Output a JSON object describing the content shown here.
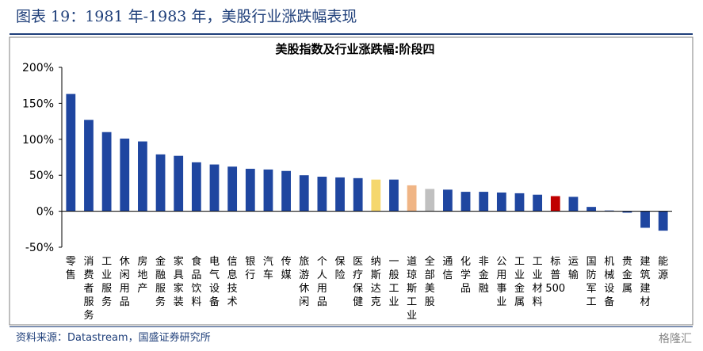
{
  "header": {
    "figure_title": "图表 19：1981 年-1983 年，美股行业涨跌幅表现"
  },
  "footer": {
    "source": "资料来源：Datastream，国盛证券研究所",
    "watermark": "格隆汇"
  },
  "colors": {
    "default_bar": "#1f46a0",
    "highlight_yellow": "#f5d76e",
    "highlight_orange": "#f0b585",
    "highlight_gray": "#c0c0c0",
    "highlight_red": "#c00000",
    "rule": "#1f3f7a"
  },
  "chart_data": {
    "type": "bar",
    "title": "美股指数及行业涨跌幅:阶段四",
    "xlabel": "",
    "ylabel": "",
    "ylim": [
      -50,
      200
    ],
    "yticks": [
      -50,
      0,
      50,
      100,
      150,
      200
    ],
    "ytick_labels": [
      "-50%",
      "0%",
      "50%",
      "100%",
      "150%",
      "200%"
    ],
    "categories": [
      "零售",
      "消费者服务",
      "工业服务",
      "休闲用品",
      "房地产",
      "金融服务",
      "家具家装",
      "食品饮料",
      "电气设备",
      "信息技术",
      "银行",
      "汽车",
      "传媒",
      "旅游休闲",
      "个人用品",
      "保险",
      "医疗保健",
      "纳斯达克",
      "一般工业",
      "道琼斯工业",
      "全部美股",
      "通信",
      "化学品",
      "非金融",
      "公用事业",
      "工业金属",
      "工业材料",
      "标普500",
      "运输",
      "国防军工",
      "机械设备",
      "贵金属",
      "建筑建材",
      "能源"
    ],
    "values": [
      163,
      127,
      110,
      101,
      97,
      79,
      77,
      68,
      65,
      62,
      59,
      58,
      56,
      50,
      48,
      47,
      46,
      44,
      44,
      36,
      31,
      30,
      27,
      27,
      26,
      25,
      23,
      21,
      20,
      6,
      1,
      -2,
      -23,
      -27
    ],
    "bar_colors": [
      "#1f46a0",
      "#1f46a0",
      "#1f46a0",
      "#1f46a0",
      "#1f46a0",
      "#1f46a0",
      "#1f46a0",
      "#1f46a0",
      "#1f46a0",
      "#1f46a0",
      "#1f46a0",
      "#1f46a0",
      "#1f46a0",
      "#1f46a0",
      "#1f46a0",
      "#1f46a0",
      "#1f46a0",
      "#f5d76e",
      "#1f46a0",
      "#f0b585",
      "#c0c0c0",
      "#1f46a0",
      "#1f46a0",
      "#1f46a0",
      "#1f46a0",
      "#1f46a0",
      "#1f46a0",
      "#c00000",
      "#1f46a0",
      "#1f46a0",
      "#1f46a0",
      "#1f46a0",
      "#1f46a0",
      "#1f46a0"
    ],
    "grid": false,
    "legend": "none"
  }
}
